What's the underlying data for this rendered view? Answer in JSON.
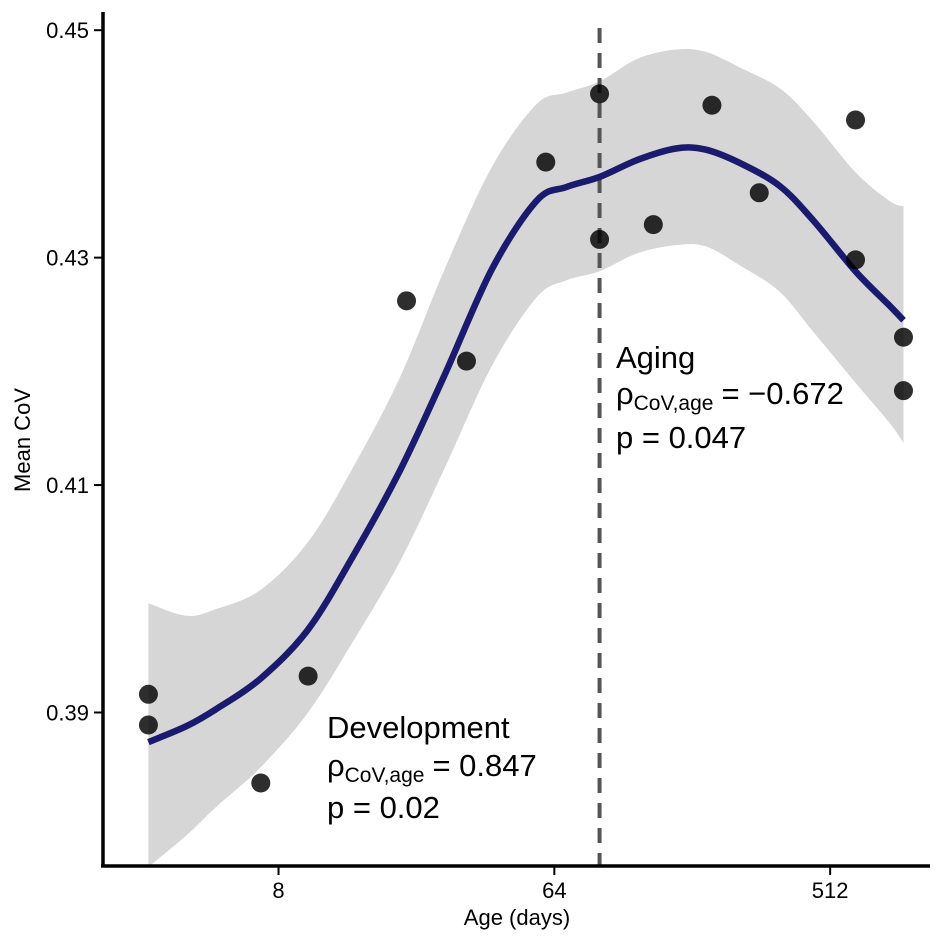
{
  "chart_data": {
    "type": "scatter",
    "xlabel": "Age (days)",
    "ylabel": "Mean CoV",
    "x_scale": "log2",
    "xlim": [
      2.13,
      1087
    ],
    "ylim": [
      0.3765,
      0.4516
    ],
    "x_ticks": [
      8,
      64,
      512
    ],
    "x_tick_labels": [
      "8",
      "64",
      "512"
    ],
    "y_ticks": [
      0.39,
      0.41,
      0.43,
      0.45
    ],
    "y_tick_labels": [
      "0.39",
      "0.41",
      "0.43",
      "0.45"
    ],
    "grid": false,
    "legend": "none",
    "vline": {
      "x": 90,
      "style": "dashed",
      "color": "#555555"
    },
    "points": {
      "color": "#000000",
      "x": [
        3,
        3,
        7,
        10,
        21,
        33,
        60,
        90,
        90,
        135,
        210,
        300,
        620,
        620,
        890,
        890
      ],
      "y": [
        0.3916,
        0.3889,
        0.3838,
        0.3932,
        0.4262,
        0.4209,
        0.4384,
        0.4444,
        0.4316,
        0.4329,
        0.4434,
        0.4357,
        0.4421,
        0.4298,
        0.423,
        0.4183
      ]
    },
    "fit": {
      "color": "#1a1a6e",
      "band_color": "#d6d6d6",
      "x": [
        3,
        4,
        5,
        7,
        10,
        14,
        20,
        28,
        40,
        56,
        70,
        90,
        120,
        160,
        200,
        260,
        350,
        450,
        620,
        800,
        890
      ],
      "y": [
        0.3874,
        0.3888,
        0.3903,
        0.393,
        0.3973,
        0.4037,
        0.4113,
        0.4197,
        0.429,
        0.435,
        0.4362,
        0.4371,
        0.4386,
        0.4396,
        0.4395,
        0.4383,
        0.4363,
        0.4333,
        0.4288,
        0.4258,
        0.4245
      ],
      "lower": [
        0.3764,
        0.3792,
        0.3817,
        0.3852,
        0.39,
        0.3962,
        0.4033,
        0.4115,
        0.4205,
        0.4265,
        0.428,
        0.4288,
        0.4304,
        0.4311,
        0.431,
        0.4293,
        0.427,
        0.4235,
        0.419,
        0.4155,
        0.4137
      ],
      "upper": [
        0.3996,
        0.3985,
        0.3991,
        0.4008,
        0.405,
        0.4115,
        0.4195,
        0.429,
        0.438,
        0.4435,
        0.4445,
        0.4455,
        0.4475,
        0.4483,
        0.4481,
        0.4467,
        0.4449,
        0.442,
        0.4375,
        0.435,
        0.4345
      ]
    },
    "annotations": [
      {
        "id": "aging",
        "title": "Aging",
        "rho_symbol": "ρ",
        "rho_sub": "CoV,age",
        "rho_value": "= −0.672",
        "p_text": "p = 0.047"
      },
      {
        "id": "development",
        "title": "Development",
        "rho_symbol": "ρ",
        "rho_sub": "CoV,age",
        "rho_value": "= 0.847",
        "p_text": "p = 0.02"
      }
    ]
  }
}
